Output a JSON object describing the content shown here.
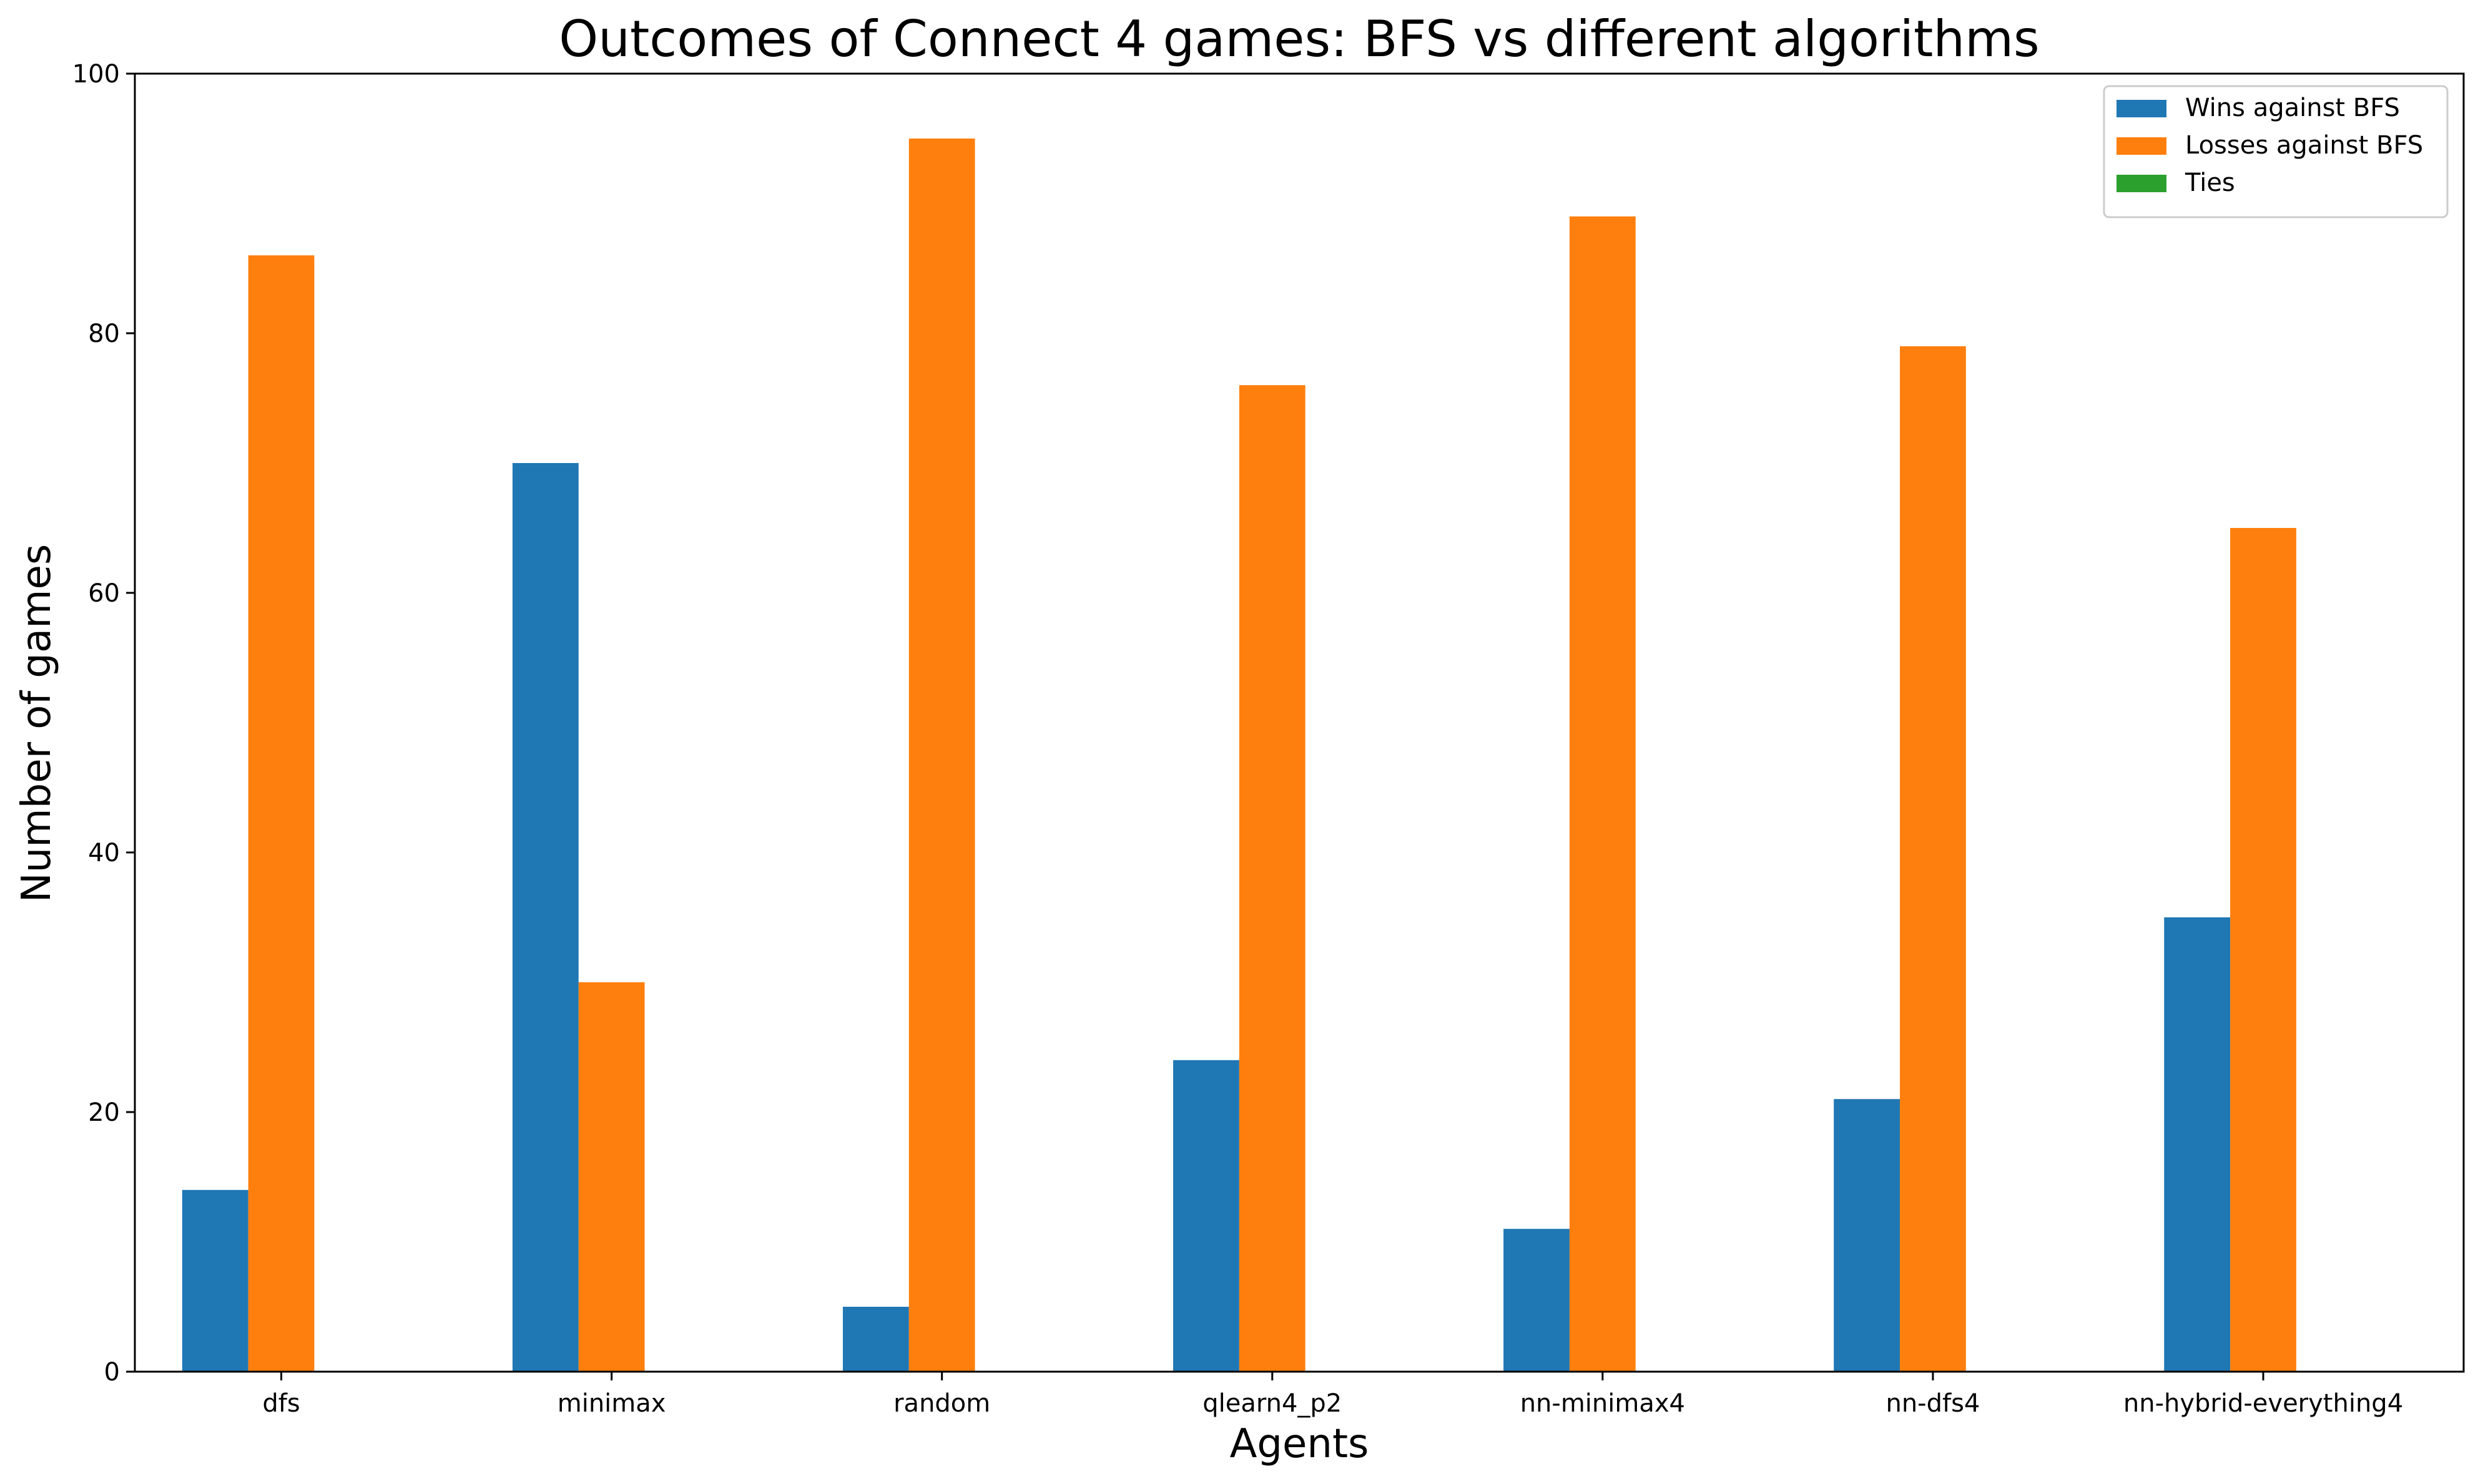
{
  "chart_data": {
    "type": "bar",
    "title": "Outcomes of Connect 4 games: BFS vs different algorithms",
    "xlabel": "Agents",
    "ylabel": "Number of games",
    "ylim": [
      0,
      100
    ],
    "yticks": [
      0,
      20,
      40,
      60,
      80,
      100
    ],
    "categories": [
      "dfs",
      "minimax",
      "random",
      "qlearn4_p2",
      "nn-minimax4",
      "nn-dfs4",
      "nn-hybrid-everything4"
    ],
    "series": [
      {
        "name": "Wins against BFS",
        "color": "#1f77b4",
        "values": [
          14,
          70,
          5,
          24,
          11,
          21,
          35
        ]
      },
      {
        "name": "Losses against BFS",
        "color": "#ff7f0e",
        "values": [
          86,
          30,
          95,
          76,
          89,
          79,
          65
        ]
      },
      {
        "name": "Ties",
        "color": "#2ca02c",
        "values": [
          0,
          0,
          0,
          0,
          0,
          0,
          0
        ]
      }
    ],
    "legend_position": "top-right",
    "grid": false
  }
}
